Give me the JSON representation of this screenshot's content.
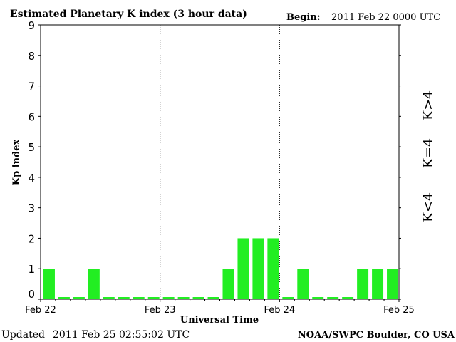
{
  "header": {
    "title": "Estimated Planetary K index (3 hour data)",
    "begin_label": "Begin:",
    "begin_value": "2011 Feb 22 0000 UTC"
  },
  "footer": {
    "updated_label": "Updated",
    "updated_value": "2011 Feb 25 02:55:02 UTC",
    "source": "NOAA/SWPC Boulder, CO USA"
  },
  "legend": {
    "low": {
      "label": "K<4",
      "color": "#22ee22"
    },
    "mid": {
      "label": "K=4",
      "color": "#ffcc00"
    },
    "high": {
      "label": "K>4",
      "color": "#ee2200"
    }
  },
  "chart_data": {
    "type": "bar",
    "title": "Estimated Planetary K index (3 hour data)",
    "xlabel": "Universal Time",
    "ylabel": "Kp index",
    "ylim": [
      0,
      9
    ],
    "yticks": [
      0,
      1,
      2,
      3,
      4,
      5,
      6,
      7,
      8,
      9
    ],
    "x_tick_labels": [
      "Feb 22",
      "Feb 23",
      "Feb 24",
      "Feb 25"
    ],
    "interval_hours": 3,
    "values": [
      1,
      0,
      0,
      1,
      0,
      0,
      0,
      0,
      0,
      0,
      0,
      0,
      1,
      2,
      2,
      2,
      0,
      1,
      0,
      0,
      0,
      1,
      1,
      1
    ],
    "bar_color": "#22ee22",
    "day_separators": "dotted"
  }
}
